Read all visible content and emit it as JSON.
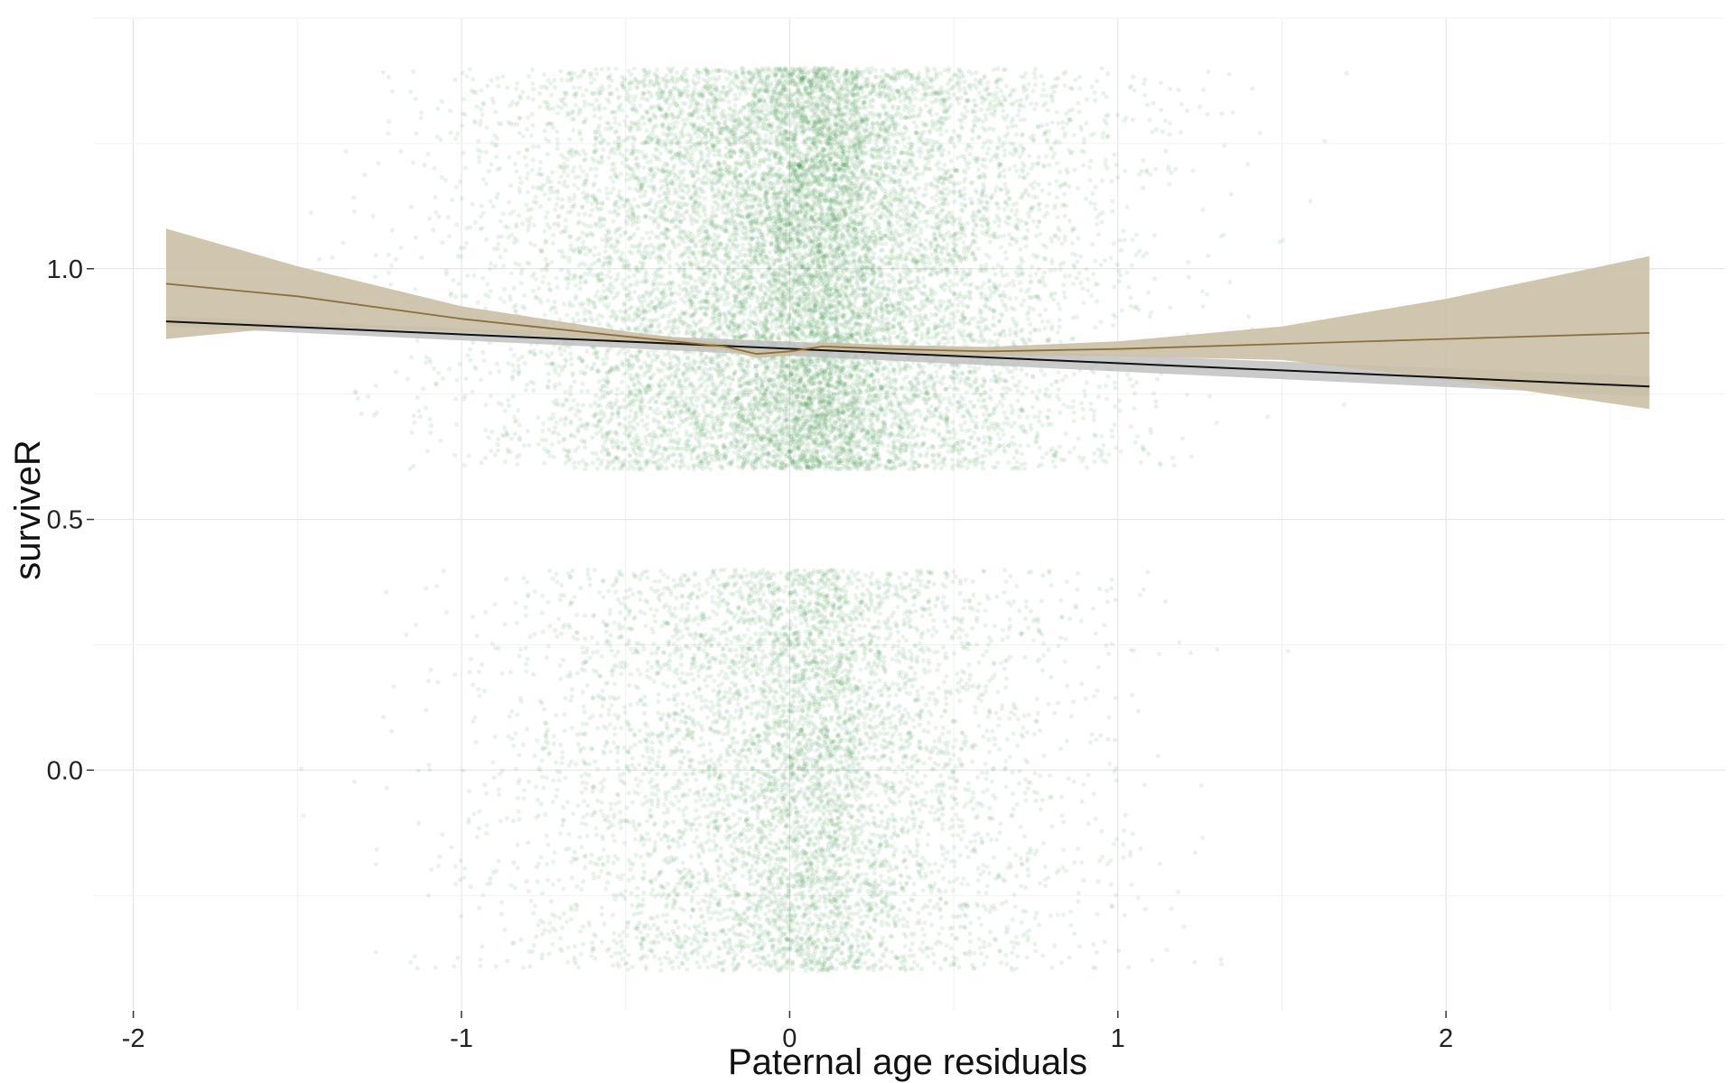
{
  "chart_data": {
    "type": "scatter",
    "title": "",
    "xlabel": "Paternal age residuals",
    "ylabel": "surviveR",
    "xlim": [
      -2.12,
      2.85
    ],
    "ylim": [
      -0.48,
      1.5
    ],
    "x_ticks": [
      -2,
      -1,
      0,
      1,
      2
    ],
    "x_tick_labels": [
      "-2",
      "-1",
      "0",
      "1",
      "2"
    ],
    "y_ticks": [
      0.0,
      0.5,
      1.0
    ],
    "y_tick_labels": [
      "0.0",
      "0.5",
      "1.0"
    ],
    "grid": true,
    "legend": "none",
    "colors": {
      "points": "#2e8b3e",
      "ribbon": "#cbbfa6",
      "linear_fit": "#111111",
      "linear_ci": "#bdbdbd",
      "loess_fit": "#8a7040"
    },
    "point_clusters": [
      {
        "outcome": 1,
        "y_jitter_range": [
          0.6,
          1.4
        ],
        "x_distribution": "normal",
        "x_mean": 0.0,
        "x_sd": 0.45,
        "x_range": [
          -1.9,
          2.6
        ],
        "approx_points_drawn": 14000
      },
      {
        "outcome": 0,
        "y_jitter_range": [
          -0.4,
          0.4
        ],
        "x_distribution": "normal",
        "x_mean": 0.0,
        "x_sd": 0.42,
        "x_range": [
          -1.5,
          1.7
        ],
        "approx_points_drawn": 6500
      }
    ],
    "series": [
      {
        "type": "linear_fit",
        "x": [
          -1.9,
          2.62
        ],
        "y": [
          0.895,
          0.765
        ],
        "ci_lower": [
          0.885,
          0.745
        ],
        "ci_upper": [
          0.905,
          0.785
        ]
      },
      {
        "type": "loess_fit",
        "x": [
          -1.9,
          -1.5,
          -1.0,
          -0.5,
          -0.2,
          -0.1,
          0.0,
          0.1,
          0.3,
          0.6,
          1.0,
          1.5,
          2.0,
          2.62
        ],
        "y": [
          0.97,
          0.945,
          0.9,
          0.865,
          0.845,
          0.83,
          0.835,
          0.845,
          0.84,
          0.835,
          0.84,
          0.85,
          0.86,
          0.872
        ],
        "ci_lower": [
          0.86,
          0.885,
          0.875,
          0.855,
          0.838,
          0.822,
          0.827,
          0.837,
          0.832,
          0.826,
          0.826,
          0.818,
          0.78,
          0.72
        ],
        "ci_upper": [
          1.08,
          1.005,
          0.925,
          0.875,
          0.852,
          0.838,
          0.843,
          0.853,
          0.848,
          0.844,
          0.855,
          0.885,
          0.94,
          1.025
        ]
      }
    ]
  }
}
